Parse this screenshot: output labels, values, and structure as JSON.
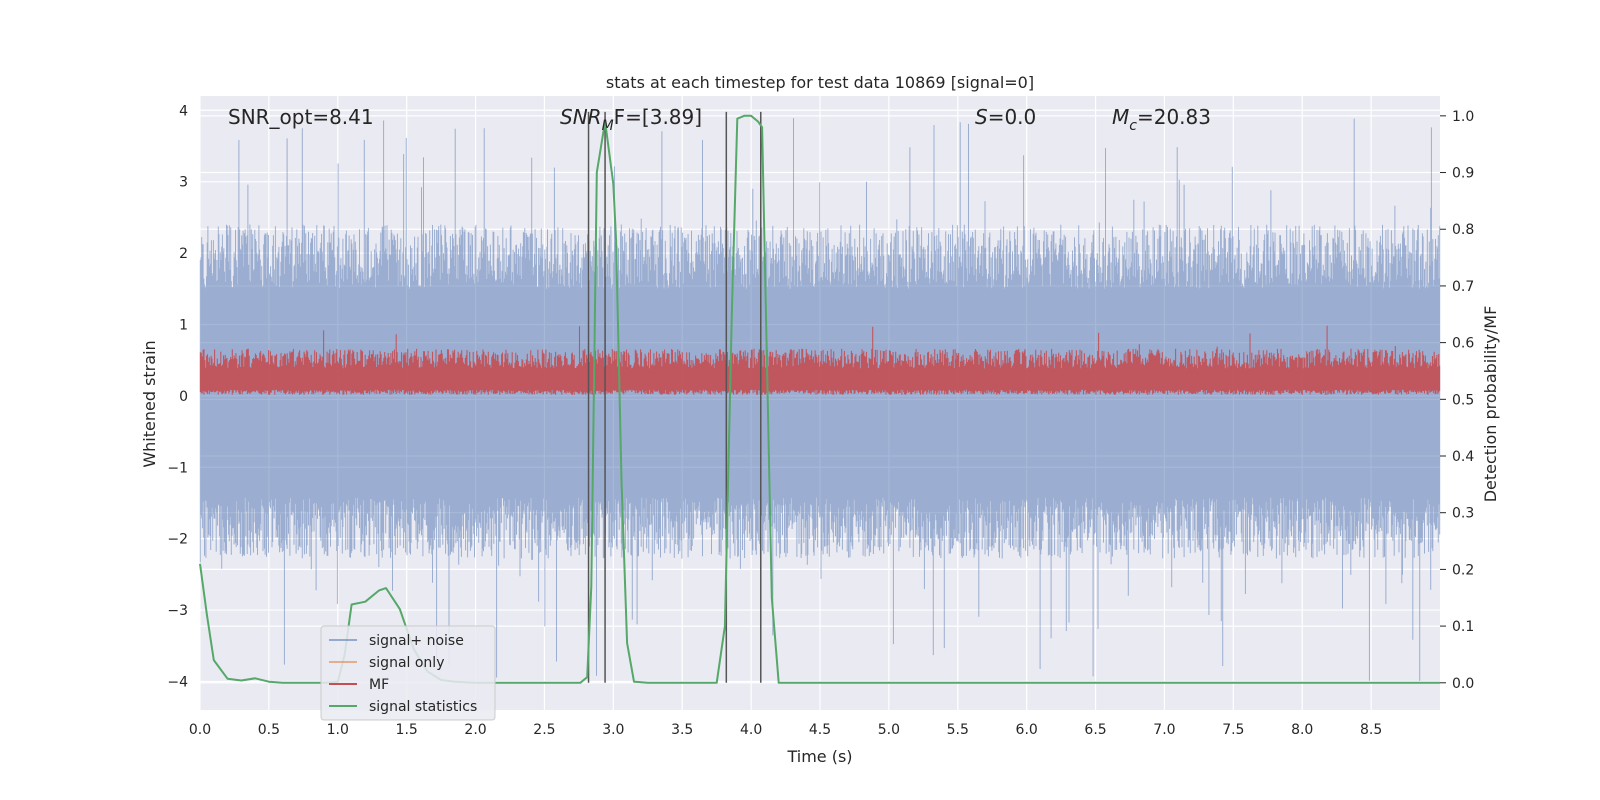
{
  "chart_data": {
    "type": "line",
    "title": "stats at each timestep for test data 10869 [signal=0]",
    "xlabel": "Time (s)",
    "ylabel_left": "Whitened strain",
    "ylabel_right": "Detection probability/MF",
    "xlim": [
      0.0,
      9.0
    ],
    "ylim_left": [
      -4.4,
      4.2
    ],
    "ylim_right": [
      -0.048,
      1.035
    ],
    "x_ticks": [
      "0.0",
      "0.5",
      "1.0",
      "1.5",
      "2.0",
      "2.5",
      "3.0",
      "3.5",
      "4.0",
      "4.5",
      "5.0",
      "5.5",
      "6.0",
      "6.5",
      "7.0",
      "7.5",
      "8.0",
      "8.5"
    ],
    "y_left_ticks": [
      "4",
      "3",
      "2",
      "1",
      "0",
      "−1",
      "−2",
      "−3",
      "−4"
    ],
    "y_right_ticks": [
      "1.0",
      "0.9",
      "0.8",
      "0.7",
      "0.6",
      "0.5",
      "0.4",
      "0.3",
      "0.2",
      "0.1",
      "0.0"
    ],
    "annotations": {
      "snr_opt": "SNR_opt=8.41",
      "snr_mf_main": "SNR",
      "snr_mf_sub": "M",
      "snr_mf_rest": "F=[3.89]",
      "s_label": "S",
      "s_value": "=0.0",
      "mc_label": "M",
      "mc_sub": "c",
      "mc_value": "=20.83"
    },
    "vertical_lines_x": [
      2.82,
      2.94,
      3.82,
      4.07
    ],
    "noise_envelope": {
      "description_values": "strain amplitude band",
      "typical_high": 2.0,
      "typical_low": -1.9,
      "peak_high": 3.9,
      "peak_low": -4.0
    },
    "mf_band": {
      "low": 0.05,
      "high": 0.55,
      "peak": 1.0
    },
    "series": [
      {
        "name": "signal+ noise",
        "color": "#4c72b0"
      },
      {
        "name": "signal only",
        "color": "#dd8452"
      },
      {
        "name": "MF",
        "color": "#c44e52"
      },
      {
        "name": "signal statistics",
        "color": "#55a868",
        "x": [
          0.0,
          0.05,
          0.1,
          0.2,
          0.3,
          0.4,
          0.5,
          0.6,
          0.7,
          0.8,
          0.9,
          1.0,
          1.05,
          1.1,
          1.2,
          1.3,
          1.35,
          1.45,
          1.55,
          1.65,
          1.75,
          1.85,
          2.0,
          2.2,
          2.5,
          2.76,
          2.81,
          2.84,
          2.88,
          2.94,
          3.0,
          3.02,
          3.06,
          3.1,
          3.15,
          3.25,
          3.5,
          3.75,
          3.81,
          3.86,
          3.9,
          3.95,
          4.0,
          4.05,
          4.08,
          4.15,
          4.2,
          4.5,
          5.0,
          6.0,
          7.0,
          8.0,
          9.0
        ],
        "y": [
          0.21,
          0.12,
          0.04,
          0.007,
          0.004,
          0.008,
          0.002,
          0.0,
          0.0,
          0.0,
          0.0,
          0.002,
          0.05,
          0.138,
          0.143,
          0.163,
          0.167,
          0.13,
          0.06,
          0.02,
          0.005,
          0.002,
          0.0,
          0.0,
          0.0,
          0.0,
          0.01,
          0.17,
          0.9,
          0.99,
          0.88,
          0.78,
          0.35,
          0.07,
          0.002,
          0.0,
          0.0,
          0.0,
          0.1,
          0.65,
          0.995,
          1.0,
          1.0,
          0.99,
          0.98,
          0.15,
          0.0,
          0.0,
          0.0,
          0.0,
          0.0,
          0.0,
          0.0
        ]
      }
    ],
    "legend_position": "lower-left",
    "grid": true
  }
}
